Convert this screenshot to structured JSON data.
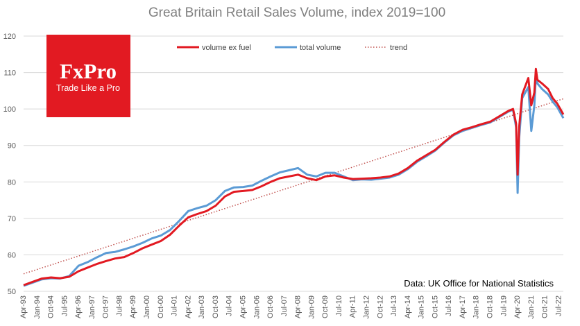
{
  "logo": {
    "brand": "FxPro",
    "tagline": "Trade Like a Pro",
    "color": "#e21a22"
  },
  "source_note": "Data: UK Office for National Statistics",
  "chart_data": {
    "type": "line",
    "title": "Great Britain Retail Sales Volume, index 2019=100",
    "xlabel": "",
    "ylabel": "",
    "ylim": [
      50,
      120
    ],
    "yticks": [
      50,
      60,
      70,
      80,
      90,
      100,
      110,
      120
    ],
    "grid": true,
    "legend_position": "top",
    "x_tick_labels": [
      "Apr-93",
      "Jan-94",
      "Oct-94",
      "Jul-95",
      "Apr-96",
      "Jan-97",
      "Oct-97",
      "Jul-98",
      "Apr-99",
      "Jan-00",
      "Oct-00",
      "Jul-01",
      "Apr-02",
      "Jan-03",
      "Oct-03",
      "Jul-04",
      "Apr-05",
      "Jan-06",
      "Oct-06",
      "Jul-07",
      "Apr-08",
      "Jan-09",
      "Oct-09",
      "Jul-10",
      "Apr-11",
      "Jan-12",
      "Oct-12",
      "Jul-13",
      "Apr-14",
      "Jan-15",
      "Oct-15",
      "Jul-16",
      "Apr-17",
      "Jan-18",
      "Oct-18",
      "Jul-19",
      "Apr-20",
      "Jan-21",
      "Oct-21",
      "Jul-22"
    ],
    "x_range": [
      "1993-04",
      "2022-10"
    ],
    "series": [
      {
        "name": "volume ex fuel",
        "color": "#e21a22",
        "style": "solid",
        "points": [
          [
            "1993-04",
            51.7
          ],
          [
            "1993-10",
            52.6
          ],
          [
            "1994-04",
            53.5
          ],
          [
            "1994-10",
            53.8
          ],
          [
            "1995-04",
            53.6
          ],
          [
            "1995-10",
            54.0
          ],
          [
            "1996-04",
            55.5
          ],
          [
            "1996-10",
            56.5
          ],
          [
            "1997-04",
            57.5
          ],
          [
            "1997-10",
            58.3
          ],
          [
            "1998-04",
            59.0
          ],
          [
            "1998-10",
            59.4
          ],
          [
            "1999-04",
            60.5
          ],
          [
            "1999-10",
            61.8
          ],
          [
            "2000-04",
            62.8
          ],
          [
            "2000-10",
            63.8
          ],
          [
            "2001-04",
            65.5
          ],
          [
            "2001-10",
            68.0
          ],
          [
            "2002-04",
            70.3
          ],
          [
            "2002-10",
            71.2
          ],
          [
            "2003-04",
            72.0
          ],
          [
            "2003-10",
            73.5
          ],
          [
            "2004-04",
            76.0
          ],
          [
            "2004-10",
            77.3
          ],
          [
            "2005-04",
            77.5
          ],
          [
            "2005-10",
            77.8
          ],
          [
            "2006-04",
            78.8
          ],
          [
            "2006-10",
            80.0
          ],
          [
            "2007-04",
            81.0
          ],
          [
            "2007-10",
            81.5
          ],
          [
            "2008-04",
            82.0
          ],
          [
            "2008-10",
            81.0
          ],
          [
            "2009-04",
            80.5
          ],
          [
            "2009-10",
            81.5
          ],
          [
            "2010-04",
            81.8
          ],
          [
            "2010-10",
            81.2
          ],
          [
            "2011-04",
            80.8
          ],
          [
            "2011-10",
            80.9
          ],
          [
            "2012-04",
            81.0
          ],
          [
            "2012-10",
            81.2
          ],
          [
            "2013-04",
            81.5
          ],
          [
            "2013-10",
            82.3
          ],
          [
            "2014-04",
            83.8
          ],
          [
            "2014-10",
            85.8
          ],
          [
            "2015-04",
            87.3
          ],
          [
            "2015-10",
            88.8
          ],
          [
            "2016-04",
            91.0
          ],
          [
            "2016-10",
            93.0
          ],
          [
            "2017-04",
            94.3
          ],
          [
            "2017-10",
            95.0
          ],
          [
            "2018-04",
            95.8
          ],
          [
            "2018-10",
            96.5
          ],
          [
            "2019-04",
            98.0
          ],
          [
            "2019-10",
            99.5
          ],
          [
            "2020-01",
            100.0
          ],
          [
            "2020-03",
            96.0
          ],
          [
            "2020-04",
            82.0
          ],
          [
            "2020-05",
            95.0
          ],
          [
            "2020-07",
            104.0
          ],
          [
            "2020-11",
            108.5
          ],
          [
            "2021-01",
            101.0
          ],
          [
            "2021-03",
            104.5
          ],
          [
            "2021-04",
            111.0
          ],
          [
            "2021-05",
            108.0
          ],
          [
            "2021-08",
            107.0
          ],
          [
            "2021-12",
            105.5
          ],
          [
            "2022-03",
            103.0
          ],
          [
            "2022-06",
            101.5
          ],
          [
            "2022-08",
            100.0
          ],
          [
            "2022-10",
            98.5
          ]
        ]
      },
      {
        "name": "total volume",
        "color": "#5b9bd5",
        "style": "solid",
        "points": [
          [
            "1993-04",
            51.5
          ],
          [
            "1993-10",
            52.4
          ],
          [
            "1994-04",
            53.3
          ],
          [
            "1994-10",
            53.6
          ],
          [
            "1995-04",
            53.5
          ],
          [
            "1995-10",
            54.2
          ],
          [
            "1996-04",
            57.0
          ],
          [
            "1996-10",
            58.0
          ],
          [
            "1997-04",
            59.3
          ],
          [
            "1997-10",
            60.5
          ],
          [
            "1998-04",
            60.8
          ],
          [
            "1998-10",
            61.5
          ],
          [
            "1999-04",
            62.3
          ],
          [
            "1999-10",
            63.3
          ],
          [
            "2000-04",
            64.5
          ],
          [
            "2000-10",
            65.3
          ],
          [
            "2001-04",
            66.8
          ],
          [
            "2001-10",
            69.3
          ],
          [
            "2002-04",
            72.0
          ],
          [
            "2002-10",
            72.8
          ],
          [
            "2003-04",
            73.5
          ],
          [
            "2003-10",
            75.0
          ],
          [
            "2004-04",
            77.5
          ],
          [
            "2004-10",
            78.5
          ],
          [
            "2005-04",
            78.6
          ],
          [
            "2005-10",
            79.0
          ],
          [
            "2006-04",
            80.3
          ],
          [
            "2006-10",
            81.5
          ],
          [
            "2007-04",
            82.6
          ],
          [
            "2007-10",
            83.2
          ],
          [
            "2008-04",
            83.8
          ],
          [
            "2008-10",
            82.0
          ],
          [
            "2009-04",
            81.5
          ],
          [
            "2009-10",
            82.5
          ],
          [
            "2010-04",
            82.5
          ],
          [
            "2010-10",
            81.5
          ],
          [
            "2011-04",
            80.5
          ],
          [
            "2011-10",
            80.7
          ],
          [
            "2012-04",
            80.6
          ],
          [
            "2012-10",
            80.9
          ],
          [
            "2013-04",
            81.2
          ],
          [
            "2013-10",
            82.0
          ],
          [
            "2014-04",
            83.5
          ],
          [
            "2014-10",
            85.5
          ],
          [
            "2015-04",
            87.0
          ],
          [
            "2015-10",
            88.6
          ],
          [
            "2016-04",
            90.8
          ],
          [
            "2016-10",
            92.8
          ],
          [
            "2017-04",
            94.0
          ],
          [
            "2017-10",
            94.8
          ],
          [
            "2018-04",
            95.6
          ],
          [
            "2018-10",
            96.3
          ],
          [
            "2019-04",
            97.8
          ],
          [
            "2019-10",
            99.3
          ],
          [
            "2020-01",
            99.8
          ],
          [
            "2020-03",
            95.0
          ],
          [
            "2020-04",
            77.0
          ],
          [
            "2020-05",
            92.0
          ],
          [
            "2020-07",
            103.0
          ],
          [
            "2020-11",
            106.0
          ],
          [
            "2021-01",
            94.0
          ],
          [
            "2021-03",
            101.0
          ],
          [
            "2021-04",
            109.0
          ],
          [
            "2021-05",
            107.0
          ],
          [
            "2021-08",
            105.5
          ],
          [
            "2021-12",
            104.0
          ],
          [
            "2022-03",
            102.0
          ],
          [
            "2022-06",
            100.5
          ],
          [
            "2022-08",
            99.0
          ],
          [
            "2022-10",
            97.5
          ]
        ]
      },
      {
        "name": "trend",
        "color": "#c0504d",
        "style": "dotted",
        "points": [
          [
            "1993-04",
            54.8
          ],
          [
            "2022-10",
            102.8
          ]
        ]
      }
    ]
  }
}
